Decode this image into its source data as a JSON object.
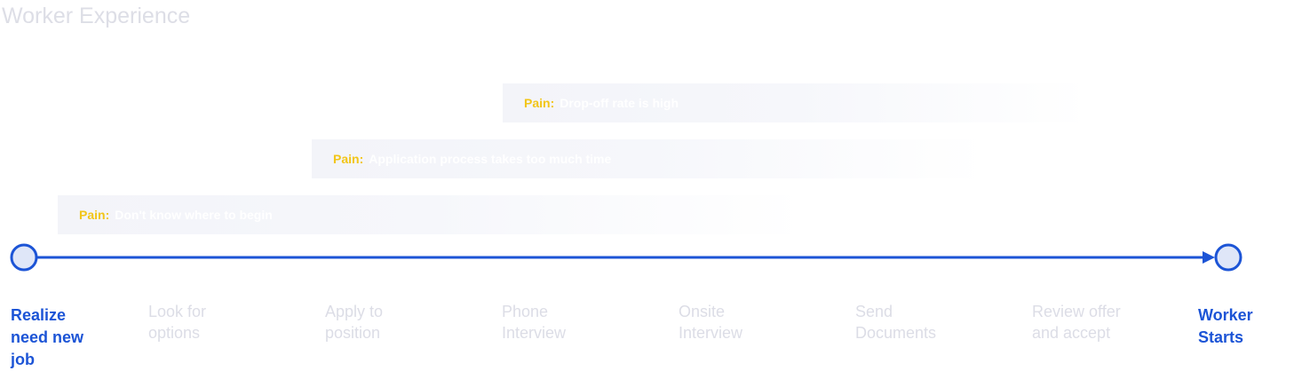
{
  "title": "Worker Experience",
  "pain_points": [
    {
      "label": "Pain:",
      "text": "Drop-off rate is high"
    },
    {
      "label": "Pain:",
      "text": "Application process takes too much time"
    },
    {
      "label": "Pain:",
      "text": "Don't know where to begin"
    }
  ],
  "stages": [
    {
      "line1": "Realize",
      "line2": "need new",
      "line3": "job"
    },
    {
      "line1": "Look for",
      "line2": "options"
    },
    {
      "line1": "Apply to",
      "line2": "position"
    },
    {
      "line1": "Phone",
      "line2": "Interview"
    },
    {
      "line1": "Onsite",
      "line2": "Interview"
    },
    {
      "line1": "Send",
      "line2": "Documents"
    },
    {
      "line1": "Review offer",
      "line2": "and accept"
    },
    {
      "line1": "Worker",
      "line2": "Starts"
    }
  ],
  "colors": {
    "accent": "#1c54d6",
    "pain_label": "#f2c518",
    "node_fill": "#dfe6f8",
    "muted_text": "#dcdde6"
  }
}
